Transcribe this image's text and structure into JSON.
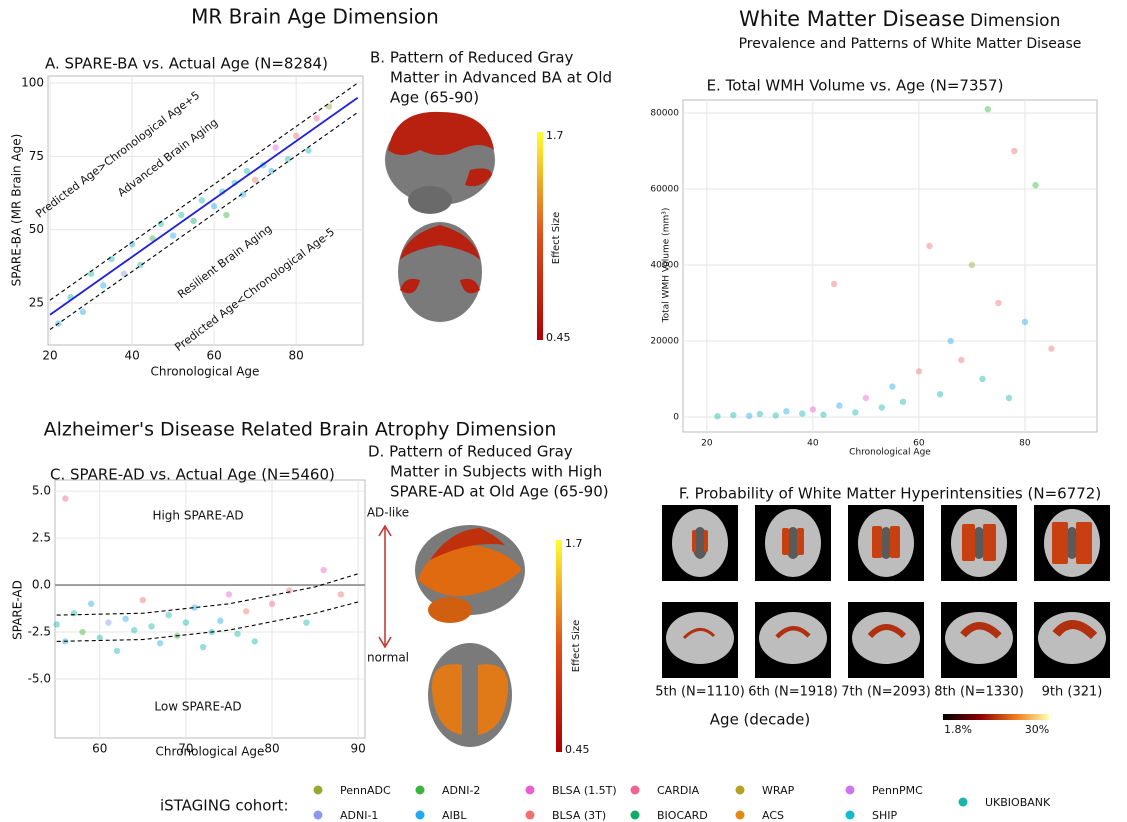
{
  "headings": {
    "mr_brain_age": "MR Brain Age Dimension",
    "wmd_main": "White Matter Disease",
    "wmd_suffix": "Dimension",
    "wmd_subtitle": "Prevalence and Patterns of White Matter Disease",
    "ad_dimension": "Alzheimer's Disease Related Brain Atrophy Dimension"
  },
  "chart_data": [
    {
      "type": "scatter",
      "title": "A. SPARE-BA vs. Actual Age (N=8284)",
      "x_label": "Chronological Age",
      "y_label": "SPARE-BA (MR Brain Age)",
      "xlim": [
        19.5,
        96.3
      ],
      "ylim": [
        10.7,
        102.4
      ],
      "xticks": [
        20,
        40,
        60,
        80
      ],
      "yticks": [
        25,
        50,
        75,
        100
      ],
      "grid": true,
      "x": [
        22,
        25,
        28,
        30,
        33,
        35,
        38,
        40,
        42,
        45,
        47,
        50,
        52,
        55,
        57,
        60,
        62,
        63,
        65,
        67,
        68,
        70,
        72,
        74,
        75,
        78,
        80,
        83,
        85,
        88
      ],
      "y": [
        18,
        27,
        22,
        35,
        31,
        40,
        35,
        45,
        38,
        47,
        52,
        48,
        55,
        53,
        60,
        58,
        63,
        55,
        66,
        62,
        70,
        67,
        72,
        70,
        78,
        74,
        82,
        77,
        88,
        92
      ],
      "point_colors": [
        "#22aaee",
        "#1ab5aa",
        "#22aaee",
        "#1ab5aa",
        "#22aaee",
        "#1ab5aa",
        "#8899ee",
        "#22aaee",
        "#1ab5aa",
        "#3cb33c",
        "#1ab5aa",
        "#22aaee",
        "#1ab5aa",
        "#11aa66",
        "#1ab5aa",
        "#22aaee",
        "#1ab5aa",
        "#3cb33c",
        "#1ab5aa",
        "#22aaee",
        "#1ab5aa",
        "#f07070",
        "#1ab5aa",
        "#22aaee",
        "#e85fd0",
        "#1ab5aa",
        "#f07070",
        "#1ab5aa",
        "#f06292",
        "#9aa832"
      ],
      "lines": [
        {
          "x": [
            20,
            95
          ],
          "y": [
            26,
            100
          ],
          "color": "#000000",
          "style": "dashed"
        },
        {
          "x": [
            20,
            95
          ],
          "y": [
            16,
            90
          ],
          "color": "#000000",
          "style": "dashed"
        },
        {
          "x": [
            20,
            95
          ],
          "y": [
            21,
            95
          ],
          "color": "#1f1fe0",
          "style": "solid"
        }
      ],
      "annotations": [
        "Predicted Age>Chronological Age+5",
        "Advanced Brain Aging",
        "Resilient Brain Aging",
        "Predicted Age<Chronological Age-5"
      ]
    },
    {
      "type": "scatter",
      "title": "C. SPARE-AD vs. Actual Age (N=5460)",
      "x_label": "Chronological Age",
      "y_label": "SPARE-AD",
      "xlim": [
        54.8,
        90.8
      ],
      "ylim": [
        -8.14,
        5.59
      ],
      "xticks": [
        60,
        70,
        80,
        90
      ],
      "yticks": [
        {
          "value": 5,
          "label": "5.0"
        },
        {
          "value": 2.5,
          "label": "2.5"
        },
        {
          "value": 0,
          "label": "0.0"
        },
        {
          "value": -2.5,
          "label": "-2.5"
        },
        {
          "value": -5,
          "label": "-5.0"
        }
      ],
      "grid": true,
      "x": [
        55,
        56,
        57,
        58,
        59,
        60,
        61,
        62,
        63,
        64,
        65,
        66,
        67,
        68,
        69,
        70,
        71,
        72,
        73,
        74,
        75,
        76,
        77,
        78,
        80,
        82,
        84,
        86,
        88,
        56
      ],
      "y": [
        -2.1,
        -3.0,
        -1.5,
        -2.5,
        -1.0,
        -2.8,
        -2.0,
        -3.5,
        -1.8,
        -2.4,
        -0.8,
        -2.2,
        -3.1,
        -1.6,
        -2.7,
        -2.0,
        -1.2,
        -3.3,
        -2.5,
        -1.9,
        -0.5,
        -2.6,
        -1.4,
        -3.0,
        -1.0,
        -0.3,
        -2.0,
        0.8,
        -0.5,
        4.6
      ],
      "point_colors": [
        "#1ab5aa",
        "#22aaee",
        "#1ab5aa",
        "#3cb33c",
        "#22aaee",
        "#1ab5aa",
        "#8899ee",
        "#1ab5aa",
        "#22aaee",
        "#1ab5aa",
        "#f07070",
        "#1ab5aa",
        "#22aaee",
        "#1ab5aa",
        "#3cb33c",
        "#1ab5aa",
        "#22aaee",
        "#1ab5aa",
        "#1ab5aa",
        "#22aaee",
        "#e85fd0",
        "#1ab5aa",
        "#f07070",
        "#1ab5aa",
        "#f06292",
        "#f07070",
        "#1ab5aa",
        "#e85fd0",
        "#f07070",
        "#f06292"
      ],
      "lines": [
        {
          "x": [
            54.8,
            90.8
          ],
          "y": [
            0,
            0
          ],
          "color": "#999999",
          "style": "solid"
        },
        {
          "x": [
            55,
            65,
            75,
            85,
            90
          ],
          "y": [
            -1.6,
            -1.5,
            -1.0,
            -0.1,
            0.6
          ],
          "color": "#000000",
          "style": "dashed"
        },
        {
          "x": [
            55,
            65,
            75,
            85,
            90
          ],
          "y": [
            -3.0,
            -2.9,
            -2.4,
            -1.5,
            -0.9
          ],
          "color": "#000000",
          "style": "dashed"
        }
      ],
      "annotations": [
        "High SPARE-AD",
        "Low SPARE-AD"
      ]
    },
    {
      "type": "scatter",
      "title": "E. Total WMH Volume vs. Age (N=7357)",
      "x_label": "Chronological Age",
      "y_label": "Total WMH Volume (mm³)",
      "xlim": [
        15.5,
        93.6
      ],
      "ylim": [
        -3947,
        83421
      ],
      "xticks": [
        20,
        40,
        60,
        80
      ],
      "yticks": [
        0,
        20000,
        40000,
        60000,
        80000
      ],
      "grid": true,
      "x": [
        22,
        25,
        28,
        30,
        33,
        35,
        38,
        40,
        42,
        44,
        45,
        48,
        50,
        53,
        55,
        57,
        60,
        62,
        64,
        66,
        68,
        70,
        72,
        73,
        75,
        77,
        78,
        80,
        82,
        85
      ],
      "y": [
        200,
        500,
        300,
        800,
        400,
        1500,
        900,
        2000,
        600,
        35000,
        3000,
        1200,
        5000,
        2500,
        8000,
        4000,
        12000,
        45000,
        6000,
        20000,
        15000,
        40000,
        10000,
        81000,
        30000,
        5000,
        70000,
        25000,
        61000,
        18000
      ],
      "point_colors": [
        "#1ab5aa",
        "#1ab5aa",
        "#22aaee",
        "#1ab5aa",
        "#1ab5aa",
        "#22aaee",
        "#1ab5aa",
        "#e85fd0",
        "#1ab5aa",
        "#f07070",
        "#22aaee",
        "#1ab5aa",
        "#e85fd0",
        "#1ab5aa",
        "#22aaee",
        "#1ab5aa",
        "#f07070",
        "#f07070",
        "#1ab5aa",
        "#22aaee",
        "#f07070",
        "#9aa832",
        "#1ab5aa",
        "#3cb33c",
        "#f07070",
        "#1ab5aa",
        "#f07070",
        "#22aaee",
        "#3cb33c",
        "#f07070"
      ],
      "lines": [],
      "annotations": []
    }
  ],
  "panel_b": {
    "title": [
      "B. Pattern of Reduced Gray",
      "Matter in Advanced BA at Old",
      "Age (65-90)"
    ],
    "colorbar_label": "Effect Size",
    "colorbar_max": "1.7",
    "colorbar_min": "0.45"
  },
  "panel_d": {
    "title": [
      "D. Pattern of Reduced Gray",
      "Matter in Subjects with High",
      "SPARE-AD at Old Age (65-90)"
    ],
    "arrow_top": "AD-like",
    "arrow_bottom": "normal",
    "colorbar_label": "Effect Size",
    "colorbar_max": "1.7",
    "colorbar_min": "0.45"
  },
  "panel_f": {
    "title": "F. Probability of White Matter Hyperintensities (N=6772)",
    "deciles": [
      "5th (N=1110)",
      "6th (N=1918)",
      "7th (N=2093)",
      "8th (N=1330)",
      "9th (321)"
    ],
    "axis_label": "Age (decade)",
    "colorbar_min": "1.8%",
    "colorbar_max": "30%"
  },
  "legend": {
    "title": "iSTAGING cohort:",
    "entries": [
      {
        "name": "PennADC",
        "color": "#9aa832"
      },
      {
        "name": "ADNI-1",
        "color": "#8899ee"
      },
      {
        "name": "ADNI-2",
        "color": "#3cb33c"
      },
      {
        "name": "AIBL",
        "color": "#22aaee"
      },
      {
        "name": "BLSA (1.5T)",
        "color": "#e85fd0"
      },
      {
        "name": "BLSA (3T)",
        "color": "#f07070"
      },
      {
        "name": "CARDIA",
        "color": "#f06292"
      },
      {
        "name": "BIOCARD",
        "color": "#11aa66"
      },
      {
        "name": "WRAP",
        "color": "#b8a020"
      },
      {
        "name": "ACS",
        "color": "#e08a10"
      },
      {
        "name": "PennPMC",
        "color": "#cc77ee"
      },
      {
        "name": "SHIP",
        "color": "#11bbcc"
      },
      {
        "name": "UKBIOBANK",
        "color": "#1ab5aa"
      }
    ]
  }
}
